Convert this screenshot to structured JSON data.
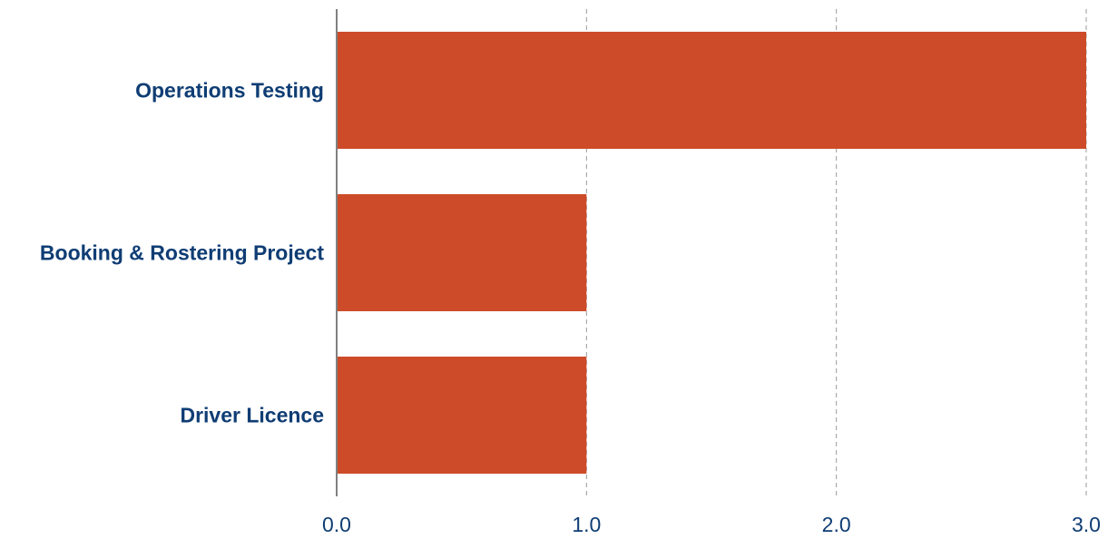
{
  "chart_data": {
    "type": "bar",
    "orientation": "horizontal",
    "categories": [
      "Operations Testing",
      "Booking & Rostering Project",
      "Driver Licence"
    ],
    "values": [
      3,
      1,
      1
    ],
    "xlim": [
      0,
      3
    ],
    "x_ticks": [
      "0.0",
      "1.0",
      "2.0",
      "3.0"
    ],
    "grid": "vertical-dashed",
    "bar_color": "#cd4b29",
    "label_color": "#0f3d74",
    "title": "",
    "xlabel": "",
    "ylabel": ""
  }
}
